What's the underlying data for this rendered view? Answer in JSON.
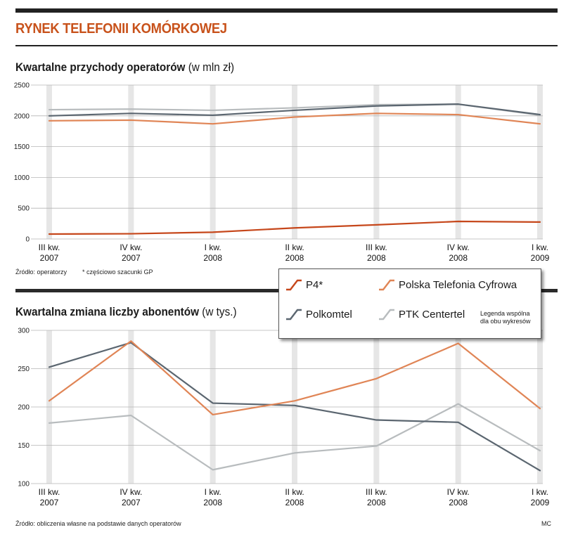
{
  "header": {
    "title": "RYNEK TELEFONII KOMÓRKOWEJ"
  },
  "chart1_heading": {
    "bold": "Kwartalne przychody operatorów",
    "unit": "(w mln zł)"
  },
  "chart2_heading": {
    "bold": "Kwartalna zmiana liczby abonentów",
    "unit": "(w tys.)"
  },
  "notes": {
    "source1": "Źródło: operatorzy",
    "footnote1": "* częściowo szacunki GP",
    "source2": "Źródło: obliczenia własne na podstawie danych operatorów",
    "author": "MC"
  },
  "legend": {
    "note_line1": "Legenda wspólna",
    "note_line2": "dla obu wykresów",
    "items": [
      "P4*",
      "Polska Telefonia Cyfrowa",
      "Polkomtel",
      "PTK Centertel"
    ]
  },
  "colors": {
    "P4": "#c6471b",
    "PTC": "#e08556",
    "Polkomtel": "#5b6670",
    "PTK": "#b8bcbe"
  },
  "chart_data": [
    {
      "type": "line",
      "title": "Kwartalne przychody operatorów (w mln zł)",
      "categories": [
        [
          "III kw.",
          "2007"
        ],
        [
          "IV kw.",
          "2007"
        ],
        [
          "I kw.",
          "2008"
        ],
        [
          "II kw.",
          "2008"
        ],
        [
          "III kw.",
          "2008"
        ],
        [
          "IV kw.",
          "2008"
        ],
        [
          "I kw.",
          "2009"
        ]
      ],
      "ylim": [
        0,
        2500
      ],
      "yticks": [
        0,
        500,
        1000,
        1500,
        2000,
        2500
      ],
      "series": [
        {
          "name": "PTK Centertel",
          "key": "PTK",
          "values": [
            2100,
            2110,
            2090,
            2130,
            2180,
            2190,
            2010
          ]
        },
        {
          "name": "Polkomtel",
          "key": "Polkomtel",
          "values": [
            2000,
            2040,
            2010,
            2090,
            2160,
            2190,
            2020
          ]
        },
        {
          "name": "Polska Telefonia Cyfrowa",
          "key": "PTC",
          "values": [
            1920,
            1930,
            1870,
            1980,
            2040,
            2020,
            1870
          ]
        },
        {
          "name": "P4*",
          "key": "P4",
          "values": [
            80,
            85,
            110,
            180,
            230,
            285,
            275
          ]
        }
      ]
    },
    {
      "type": "line",
      "title": "Kwartalna zmiana liczby abonentów (w tys.)",
      "categories": [
        [
          "III kw.",
          "2007"
        ],
        [
          "IV kw.",
          "2007"
        ],
        [
          "I kw.",
          "2008"
        ],
        [
          "II kw.",
          "2008"
        ],
        [
          "III kw.",
          "2008"
        ],
        [
          "IV kw.",
          "2008"
        ],
        [
          "I kw.",
          "2009"
        ]
      ],
      "ylim": [
        100,
        300
      ],
      "yticks": [
        100,
        150,
        200,
        250,
        300
      ],
      "series": [
        {
          "name": "PTK Centertel",
          "key": "PTK",
          "values": [
            179,
            189,
            118,
            140,
            149,
            204,
            143
          ]
        },
        {
          "name": "Polkomtel",
          "key": "Polkomtel",
          "values": [
            252,
            284,
            205,
            202,
            183,
            180,
            117
          ]
        },
        {
          "name": "Polska Telefonia Cyfrowa",
          "key": "PTC",
          "values": [
            208,
            286,
            190,
            208,
            237,
            283,
            198
          ]
        }
      ]
    }
  ]
}
